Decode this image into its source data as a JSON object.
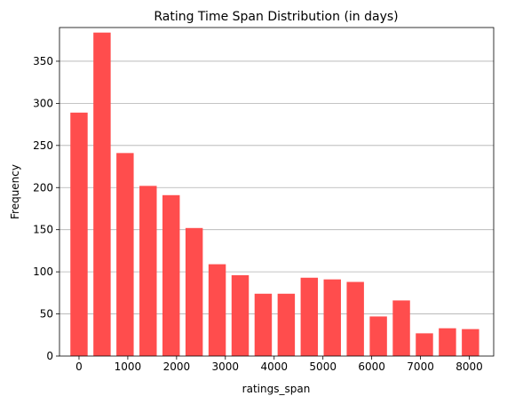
{
  "chart_data": {
    "type": "bar",
    "title": "Rating Time Span Distribution (in days)",
    "xlabel": "ratings_span",
    "ylabel": "Frequency",
    "xlim": [
      -400,
      8500
    ],
    "ylim": [
      0,
      390
    ],
    "xticks": [
      0,
      1000,
      2000,
      3000,
      4000,
      5000,
      6000,
      7000,
      8000
    ],
    "yticks": [
      0,
      50,
      100,
      150,
      200,
      250,
      300,
      350
    ],
    "grid": "y",
    "legend": "none",
    "color": "#ff4d4d",
    "bin_width": 472,
    "bar_fraction": 0.75,
    "bins": [
      {
        "x": 0,
        "value": 289
      },
      {
        "x": 472,
        "value": 384
      },
      {
        "x": 944,
        "value": 241
      },
      {
        "x": 1416,
        "value": 202
      },
      {
        "x": 1888,
        "value": 191
      },
      {
        "x": 2360,
        "value": 152
      },
      {
        "x": 2832,
        "value": 109
      },
      {
        "x": 3304,
        "value": 96
      },
      {
        "x": 3776,
        "value": 74
      },
      {
        "x": 4248,
        "value": 74
      },
      {
        "x": 4720,
        "value": 93
      },
      {
        "x": 5192,
        "value": 91
      },
      {
        "x": 5664,
        "value": 88
      },
      {
        "x": 6136,
        "value": 47
      },
      {
        "x": 6608,
        "value": 66
      },
      {
        "x": 7080,
        "value": 27
      },
      {
        "x": 7552,
        "value": 33
      },
      {
        "x": 8024,
        "value": 32
      }
    ]
  }
}
